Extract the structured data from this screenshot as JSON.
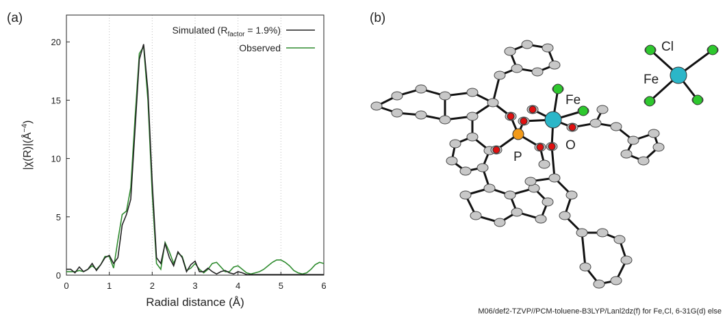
{
  "chart_data": {
    "type": "line",
    "panel_label": "(a)",
    "xlabel": "Radial distance (Å)",
    "ylabel": "|χ(R)|(Å",
    "ylabel_sup": "−4",
    "ylabel_end": ")",
    "xlim": [
      0,
      6
    ],
    "ylim": [
      0,
      22.3
    ],
    "xticks": [
      0,
      1,
      2,
      3,
      4,
      5,
      6
    ],
    "yticks": [
      0,
      5,
      10,
      15,
      20
    ],
    "grid": "x-dotted",
    "legend": "upper right",
    "x": [
      0,
      0.1,
      0.2,
      0.3,
      0.4,
      0.5,
      0.6,
      0.7,
      0.8,
      0.9,
      1,
      1.1,
      1.2,
      1.3,
      1.4,
      1.5,
      1.6,
      1.7,
      1.8,
      1.9,
      2,
      2.1,
      2.2,
      2.3,
      2.4,
      2.5,
      2.6,
      2.7,
      2.8,
      2.9,
      3,
      3.1,
      3.2,
      3.3,
      3.4,
      3.5,
      3.6,
      3.7,
      3.8,
      3.9,
      4,
      4.1,
      4.2,
      4.3,
      4.4,
      4.5,
      4.6,
      4.7,
      4.8,
      4.9,
      5,
      5.1,
      5.2,
      5.3,
      5.4,
      5.5,
      5.6,
      5.7,
      5.8,
      5.9,
      6
    ],
    "series": [
      {
        "name": "Simulated (R",
        "name_sub": "factor",
        "name_end": " = 1.9%)",
        "color": "#222222",
        "values": [
          0.5,
          0.5,
          0.2,
          0.7,
          0.3,
          0.5,
          1.0,
          0.4,
          0.9,
          1.5,
          1.7,
          1.0,
          1.5,
          4.3,
          5.2,
          6.5,
          12.5,
          18.5,
          19.8,
          15.8,
          8.0,
          1.5,
          1.0,
          2.7,
          1.5,
          0.8,
          2.0,
          1.5,
          0.3,
          0.9,
          1.2,
          0.3,
          0.3,
          0.6,
          0.3,
          0.1,
          0.3,
          0.4,
          0.2,
          0.1,
          0.3,
          0.2,
          0.05,
          0.05,
          0.05,
          0.05,
          0.05,
          0.05,
          0.05,
          0.05,
          0.05,
          0.05,
          0.05,
          0.05,
          0.05,
          0.05,
          0.05,
          0.05,
          0.05,
          0.05,
          0.05
        ]
      },
      {
        "name": "Observed",
        "color": "#2e8b2e",
        "values": [
          0.3,
          0.3,
          0.3,
          0.4,
          0.3,
          0.5,
          0.8,
          0.5,
          0.9,
          1.6,
          1.6,
          0.6,
          3.0,
          5.2,
          5.5,
          7.5,
          13.5,
          19.0,
          19.6,
          15.0,
          7.0,
          1.0,
          0.5,
          2.8,
          2.0,
          1.0,
          1.9,
          1.6,
          0.4,
          0.6,
          1.0,
          0.5,
          0.2,
          0.5,
          1.0,
          1.1,
          0.7,
          0.3,
          0.3,
          0.7,
          0.8,
          0.5,
          0.2,
          0.1,
          0.2,
          0.3,
          0.5,
          0.8,
          1.1,
          1.3,
          1.3,
          1.1,
          0.8,
          0.4,
          0.2,
          0.1,
          0.2,
          0.5,
          0.9,
          1.1,
          1.0
        ]
      }
    ]
  },
  "structure": {
    "panel_label": "(b)",
    "atom_labels": [
      "Cl",
      "Fe",
      "Fe",
      "O",
      "P"
    ],
    "caption": "M06/def2-TZVP//PCM-toluene-B3LYP/Lanl2dz(f) for Fe,Cl, 6-31G(d) else"
  }
}
